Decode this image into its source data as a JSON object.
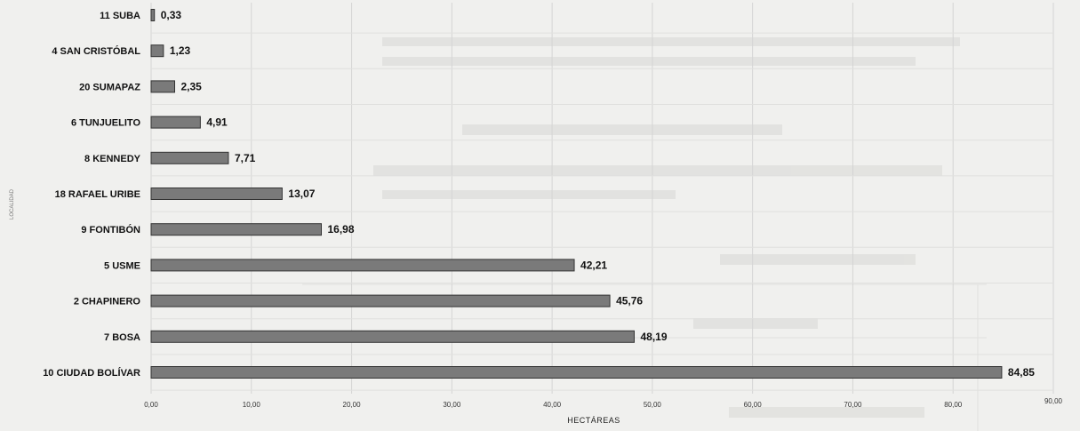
{
  "chart_data": {
    "type": "bar",
    "orientation": "horizontal",
    "categories": [
      "11 SUBA",
      "4 SAN CRISTÓBAL",
      "20 SUMAPAZ",
      "6 TUNJUELITO",
      "8 KENNEDY",
      "18 RAFAEL URIBE",
      "9 FONTIBÓN",
      "5 USME",
      "2 CHAPINERO",
      "7 BOSA",
      "10 CIUDAD BOLÍVAR"
    ],
    "values": [
      0.33,
      1.23,
      2.35,
      4.91,
      7.71,
      13.07,
      16.98,
      42.21,
      45.76,
      48.19,
      84.85
    ],
    "value_labels": [
      "0,33",
      "1,23",
      "2,35",
      "4,91",
      "7,71",
      "13,07",
      "16,98",
      "42,21",
      "45,76",
      "48,19",
      "84,85"
    ],
    "xlim": [
      0,
      90
    ],
    "xticks": [
      "0,00",
      "10,00",
      "20,00",
      "30,00",
      "40,00",
      "50,00",
      "60,00",
      "70,00",
      "80,00",
      "90,00"
    ],
    "xlabel": "HECTÁREAS",
    "ylabel": "LOCALIDAD",
    "title": "",
    "grid": true,
    "colors": {
      "bar": "#7a7a7a",
      "bar_edge": "#333333",
      "grid": "#d4d4d4",
      "background": "#f3f3f1"
    }
  }
}
